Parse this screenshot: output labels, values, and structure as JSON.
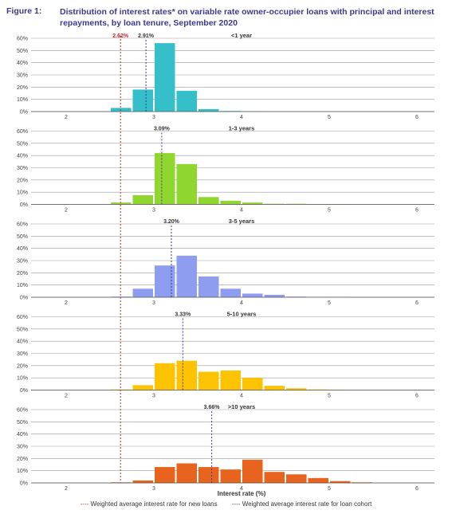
{
  "figure": {
    "label": "Figure 1:",
    "title": "Distribution of interest rates* on variable rate owner-occupier loans with principal and interest repayments, by loan tenure, September 2020"
  },
  "chart_data": {
    "type": "bar",
    "xlabel": "Interest rate (%)",
    "xlim": [
      1.6,
      6.2
    ],
    "xticks": [
      2,
      3,
      4,
      5,
      6
    ],
    "ylim": [
      0,
      60
    ],
    "yticks": [
      "0%",
      "10%",
      "20%",
      "30%",
      "40%",
      "50%",
      "60%"
    ],
    "bin_width": 0.25,
    "new_loans_rate": 2.62,
    "new_loans_label": "2.62%",
    "panels": [
      {
        "name": "<1 year",
        "color": "#35bfc9",
        "cohort_rate": 2.91,
        "cohort_label": "2.91%",
        "bins": [
          {
            "x": 2.5,
            "value": 3
          },
          {
            "x": 2.75,
            "value": 18
          },
          {
            "x": 3.0,
            "value": 56
          },
          {
            "x": 3.25,
            "value": 17
          },
          {
            "x": 3.5,
            "value": 2
          },
          {
            "x": 3.75,
            "value": 0.5
          },
          {
            "x": 4.0,
            "value": 0.3
          }
        ]
      },
      {
        "name": "1-3 years",
        "color": "#8fd62f",
        "cohort_rate": 3.09,
        "cohort_label": "3.09%",
        "bins": [
          {
            "x": 2.5,
            "value": 1.5
          },
          {
            "x": 2.75,
            "value": 7.5
          },
          {
            "x": 3.0,
            "value": 42
          },
          {
            "x": 3.25,
            "value": 33
          },
          {
            "x": 3.5,
            "value": 6
          },
          {
            "x": 3.75,
            "value": 3
          },
          {
            "x": 4.0,
            "value": 1.5
          },
          {
            "x": 4.25,
            "value": 0.5
          },
          {
            "x": 4.5,
            "value": 0.5
          },
          {
            "x": 4.75,
            "value": 0.3
          },
          {
            "x": 5.0,
            "value": 0.3
          }
        ]
      },
      {
        "name": "3-5 years",
        "color": "#8f9df0",
        "cohort_rate": 3.2,
        "cohort_label": "3.20%",
        "bins": [
          {
            "x": 2.5,
            "value": 0.5
          },
          {
            "x": 2.75,
            "value": 7
          },
          {
            "x": 3.0,
            "value": 26
          },
          {
            "x": 3.25,
            "value": 34
          },
          {
            "x": 3.5,
            "value": 17
          },
          {
            "x": 3.75,
            "value": 7
          },
          {
            "x": 4.0,
            "value": 3
          },
          {
            "x": 4.25,
            "value": 2
          },
          {
            "x": 4.5,
            "value": 0.5
          },
          {
            "x": 4.75,
            "value": 0.3
          },
          {
            "x": 5.0,
            "value": 0.3
          }
        ]
      },
      {
        "name": "5-10 years",
        "color": "#fdc300",
        "cohort_rate": 3.33,
        "cohort_label": "3.33%",
        "bins": [
          {
            "x": 2.5,
            "value": 0.5
          },
          {
            "x": 2.75,
            "value": 4
          },
          {
            "x": 3.0,
            "value": 22
          },
          {
            "x": 3.25,
            "value": 24
          },
          {
            "x": 3.5,
            "value": 15
          },
          {
            "x": 3.75,
            "value": 16
          },
          {
            "x": 4.0,
            "value": 10
          },
          {
            "x": 4.25,
            "value": 3.5
          },
          {
            "x": 4.5,
            "value": 1.5
          },
          {
            "x": 4.75,
            "value": 0.5
          },
          {
            "x": 5.0,
            "value": 0.3
          }
        ]
      },
      {
        "name": ">10 years",
        "color": "#e8631e",
        "cohort_rate": 3.66,
        "cohort_label": "3.66%",
        "bins": [
          {
            "x": 2.5,
            "value": 0.5
          },
          {
            "x": 2.75,
            "value": 2
          },
          {
            "x": 3.0,
            "value": 13
          },
          {
            "x": 3.25,
            "value": 16
          },
          {
            "x": 3.5,
            "value": 13
          },
          {
            "x": 3.75,
            "value": 11
          },
          {
            "x": 4.0,
            "value": 19
          },
          {
            "x": 4.25,
            "value": 9
          },
          {
            "x": 4.5,
            "value": 7
          },
          {
            "x": 4.75,
            "value": 4
          },
          {
            "x": 5.0,
            "value": 1.5
          },
          {
            "x": 5.25,
            "value": 0.5
          }
        ]
      }
    ],
    "legend": {
      "new_loans": "Weighted average interest rate for new loans",
      "cohort": "Weighted average interest rate for loan cohort"
    },
    "colors": {
      "new_loans_line": "#c0282d",
      "cohort_line": "#3a3a8c",
      "grid": "#9a9a9a"
    }
  }
}
